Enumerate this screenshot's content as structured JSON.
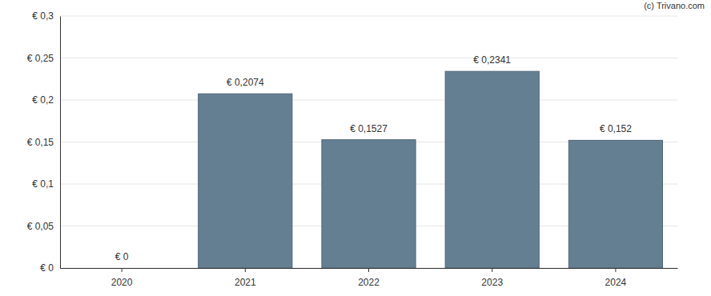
{
  "chart_data": {
    "type": "bar",
    "categories": [
      "2020",
      "2021",
      "2022",
      "2023",
      "2024"
    ],
    "values": [
      0,
      0.2074,
      0.1527,
      0.2341,
      0.152
    ],
    "value_labels": [
      "€ 0",
      "€ 0,2074",
      "€ 0,1527",
      "€ 0,2341",
      "€ 0,152"
    ],
    "data_labels": true,
    "color": "#657f92",
    "ylim": [
      0,
      0.3
    ],
    "yticks": [
      {
        "value": 0,
        "label": "€ 0"
      },
      {
        "value": 0.05,
        "label": "€ 0,05"
      },
      {
        "value": 0.1,
        "label": "€ 0,1"
      },
      {
        "value": 0.15,
        "label": "€ 0,15"
      },
      {
        "value": 0.2,
        "label": "€ 0,2"
      },
      {
        "value": 0.25,
        "label": "€ 0,25"
      },
      {
        "value": 0.3,
        "label": "€ 0,3"
      }
    ],
    "grid": true,
    "annotations": [
      "(c) Trivano.com"
    ]
  }
}
